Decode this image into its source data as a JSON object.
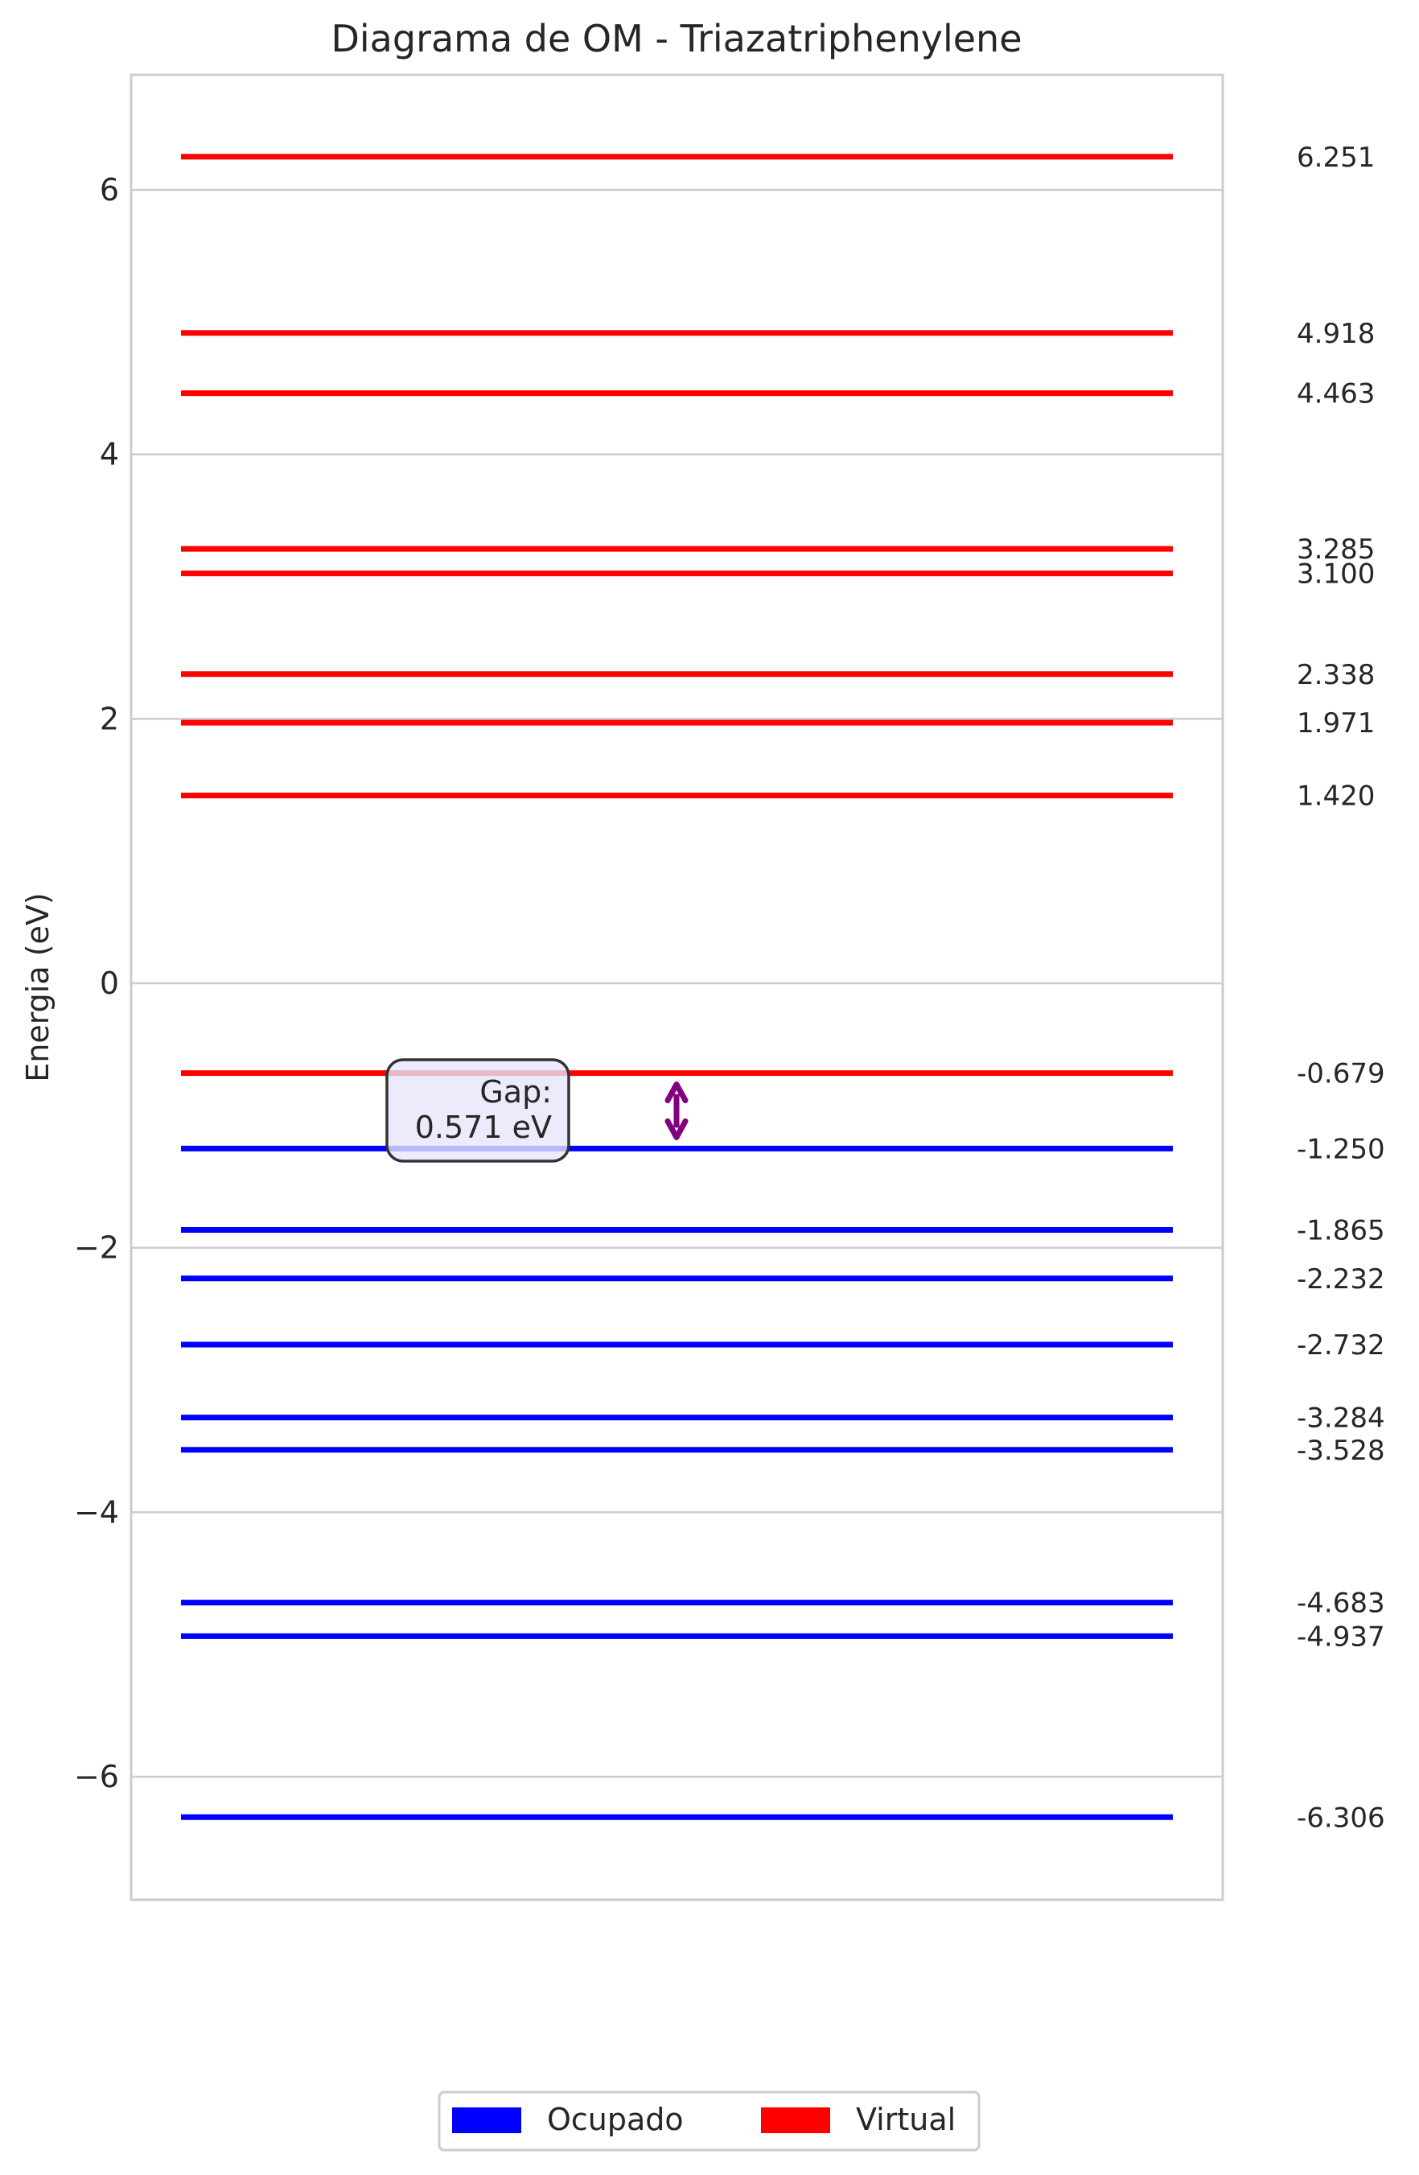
{
  "chart_data": {
    "type": "energy-level-diagram",
    "title": "Diagrama de OM - Triazatriphenylene",
    "ylabel": "Energia (eV)",
    "xlabel": "",
    "ylim": [
      -6.9,
      6.9
    ],
    "yticks": [
      -6,
      -4,
      -2,
      0,
      2,
      4,
      6
    ],
    "ytick_labels": [
      "−6",
      "−4",
      "−2",
      "0",
      "2",
      "4",
      "6"
    ],
    "grid": true,
    "series": [
      {
        "name": "Ocupado",
        "color": "#0000ff",
        "values": [
          -1.25,
          -1.865,
          -2.232,
          -2.732,
          -3.284,
          -3.528,
          -4.683,
          -4.937,
          -6.306
        ],
        "labels": [
          "-1.250",
          "-1.865",
          "-2.232",
          "-2.732",
          "-3.284",
          "-3.528",
          "-4.683",
          "-4.937",
          "-6.306"
        ]
      },
      {
        "name": "Virtual",
        "color": "#ff0000",
        "values": [
          6.251,
          4.918,
          4.463,
          3.285,
          3.1,
          2.338,
          1.971,
          1.42,
          -0.679
        ],
        "labels": [
          "6.251",
          "4.918",
          "4.463",
          "3.285",
          "3.100",
          "2.338",
          "1.971",
          "1.420",
          "-0.679"
        ]
      }
    ],
    "gap": {
      "label_line1": "Gap:",
      "label_line2": "0.571 eV",
      "from": -1.25,
      "to": -0.679,
      "arrow_color": "#800080",
      "box_fill": "#e6e6fa"
    },
    "legend": {
      "placement": "bottom-center",
      "entries": [
        "Ocupado",
        "Virtual"
      ]
    }
  }
}
